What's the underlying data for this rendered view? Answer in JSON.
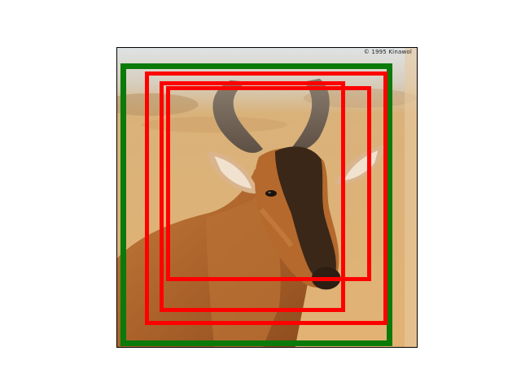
{
  "image": {
    "subject": "hartebeest-antelope-head",
    "watermark_text": "© 1995 Kinawol",
    "colors": {
      "sky": "#d8dde0",
      "ground": "#d9a76a",
      "fur": "#b0692e",
      "fur_dark": "#3a261a",
      "horn": "#6f6253"
    }
  },
  "boxes": {
    "ground_truth_color": "#0a7a0a",
    "prediction_color": "#ff0000",
    "ground_truth_count": 1,
    "prediction_count": 3
  }
}
